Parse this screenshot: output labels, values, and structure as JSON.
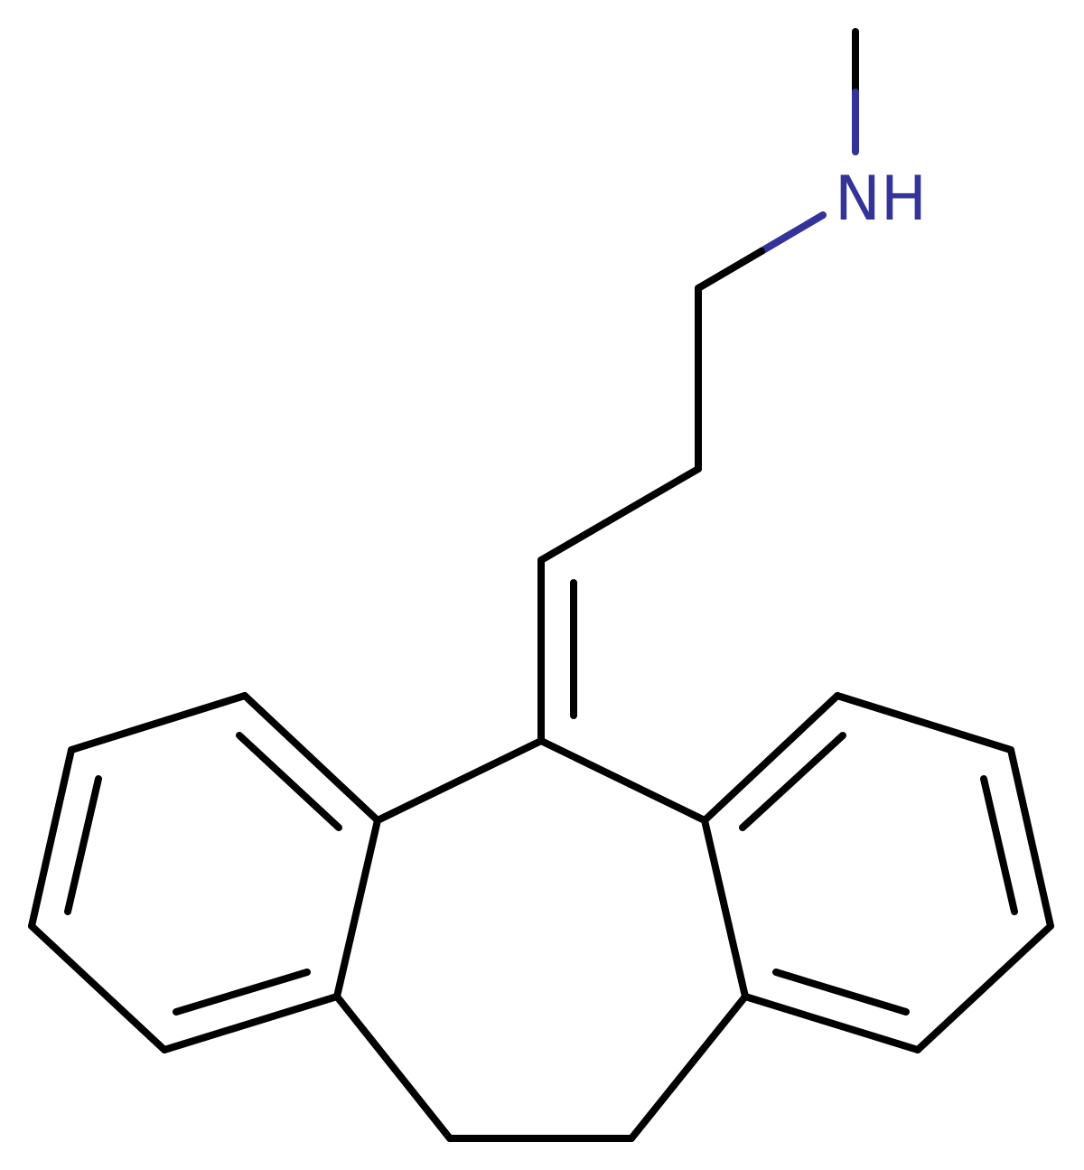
{
  "molecule": {
    "atom_labels": [
      {
        "element": "N",
        "text": "NH",
        "color": "#33339a"
      }
    ],
    "bond_color": "#000000",
    "heteroatom_color": "#33339a"
  }
}
